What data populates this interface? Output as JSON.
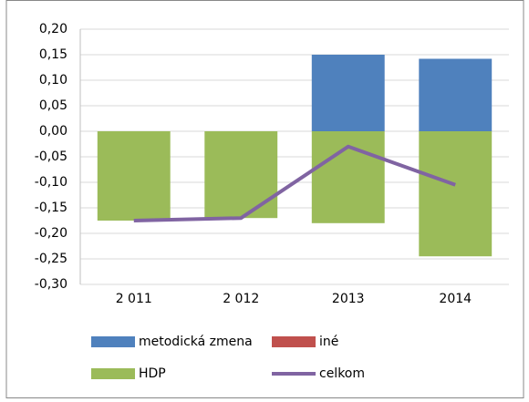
{
  "chart_data": {
    "type": "stacked-bar-line",
    "categories": [
      "2 011",
      "2 012",
      "2013",
      "2014"
    ],
    "series": [
      {
        "name": "metodická zmena",
        "color": "#4f81bd",
        "kind": "bar",
        "values": [
          0,
          0,
          0.15,
          0.142
        ]
      },
      {
        "name": "iné",
        "color": "#c0504d",
        "kind": "bar",
        "values": [
          0,
          0,
          0,
          0
        ]
      },
      {
        "name": "HDP",
        "color": "#9bbb59",
        "kind": "bar",
        "values": [
          -0.175,
          -0.17,
          -0.18,
          -0.245
        ]
      },
      {
        "name": "celkom",
        "color": "#8064a2",
        "kind": "line",
        "values": [
          -0.175,
          -0.17,
          -0.03,
          -0.105
        ]
      }
    ],
    "ylim": [
      -0.3,
      0.2
    ],
    "yticks": [
      {
        "value": 0.2,
        "label": "0,20"
      },
      {
        "value": 0.15,
        "label": "0,15"
      },
      {
        "value": 0.1,
        "label": "0,10"
      },
      {
        "value": 0.05,
        "label": "0,05"
      },
      {
        "value": 0,
        "label": "0,00"
      },
      {
        "value": -0.05,
        "label": "-0,05"
      },
      {
        "value": -0.1,
        "label": "-0,10"
      },
      {
        "value": -0.15,
        "label": "-0,15"
      },
      {
        "value": -0.2,
        "label": "-0,20"
      },
      {
        "value": -0.25,
        "label": "-0,25"
      },
      {
        "value": -0.3,
        "label": "-0,30"
      }
    ],
    "grid": true
  }
}
